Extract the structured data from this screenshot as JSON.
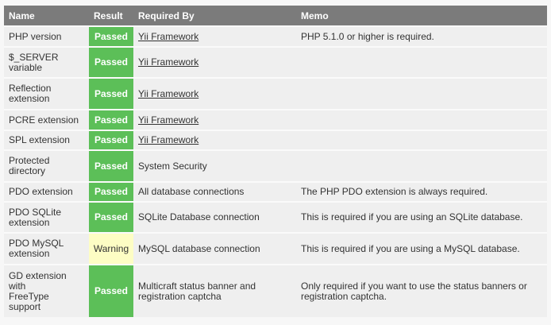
{
  "headers": {
    "name": "Name",
    "result": "Result",
    "required_by": "Required By",
    "memo": "Memo"
  },
  "colors": {
    "passed": "#5cbf58",
    "warning": "#fdfdc4",
    "header": "#7b7b7b"
  },
  "rows": [
    {
      "name": "PHP version",
      "result": "Passed",
      "required_by": "Yii Framework",
      "link": true,
      "memo": "PHP 5.1.0 or higher is required."
    },
    {
      "name": "$_SERVER variable",
      "result": "Passed",
      "required_by": "Yii Framework",
      "link": true,
      "memo": ""
    },
    {
      "name": "Reflection extension",
      "result": "Passed",
      "required_by": "Yii Framework",
      "link": true,
      "memo": ""
    },
    {
      "name": "PCRE extension",
      "result": "Passed",
      "required_by": "Yii Framework",
      "link": true,
      "memo": ""
    },
    {
      "name": "SPL extension",
      "result": "Passed",
      "required_by": "Yii Framework",
      "link": true,
      "memo": ""
    },
    {
      "name": "Protected directory",
      "result": "Passed",
      "required_by": "System Security",
      "link": false,
      "memo": ""
    },
    {
      "name": "PDO extension",
      "result": "Passed",
      "required_by": "All database connections",
      "link": false,
      "memo": "The PHP PDO extension is always required."
    },
    {
      "name": "PDO SQLite extension",
      "result": "Passed",
      "required_by": "SQLite Database connection",
      "link": false,
      "memo": "This is required if you are using an SQLite database."
    },
    {
      "name": "PDO MySQL extension",
      "result": "Warning",
      "required_by": "MySQL database connection",
      "link": false,
      "memo": "This is required if you are using a MySQL database."
    },
    {
      "name": "GD extension with FreeType support",
      "result": "Passed",
      "required_by": "Multicraft status banner and registration captcha",
      "link": false,
      "memo": "Only required if you want to use the status banners or registration captcha."
    }
  ]
}
